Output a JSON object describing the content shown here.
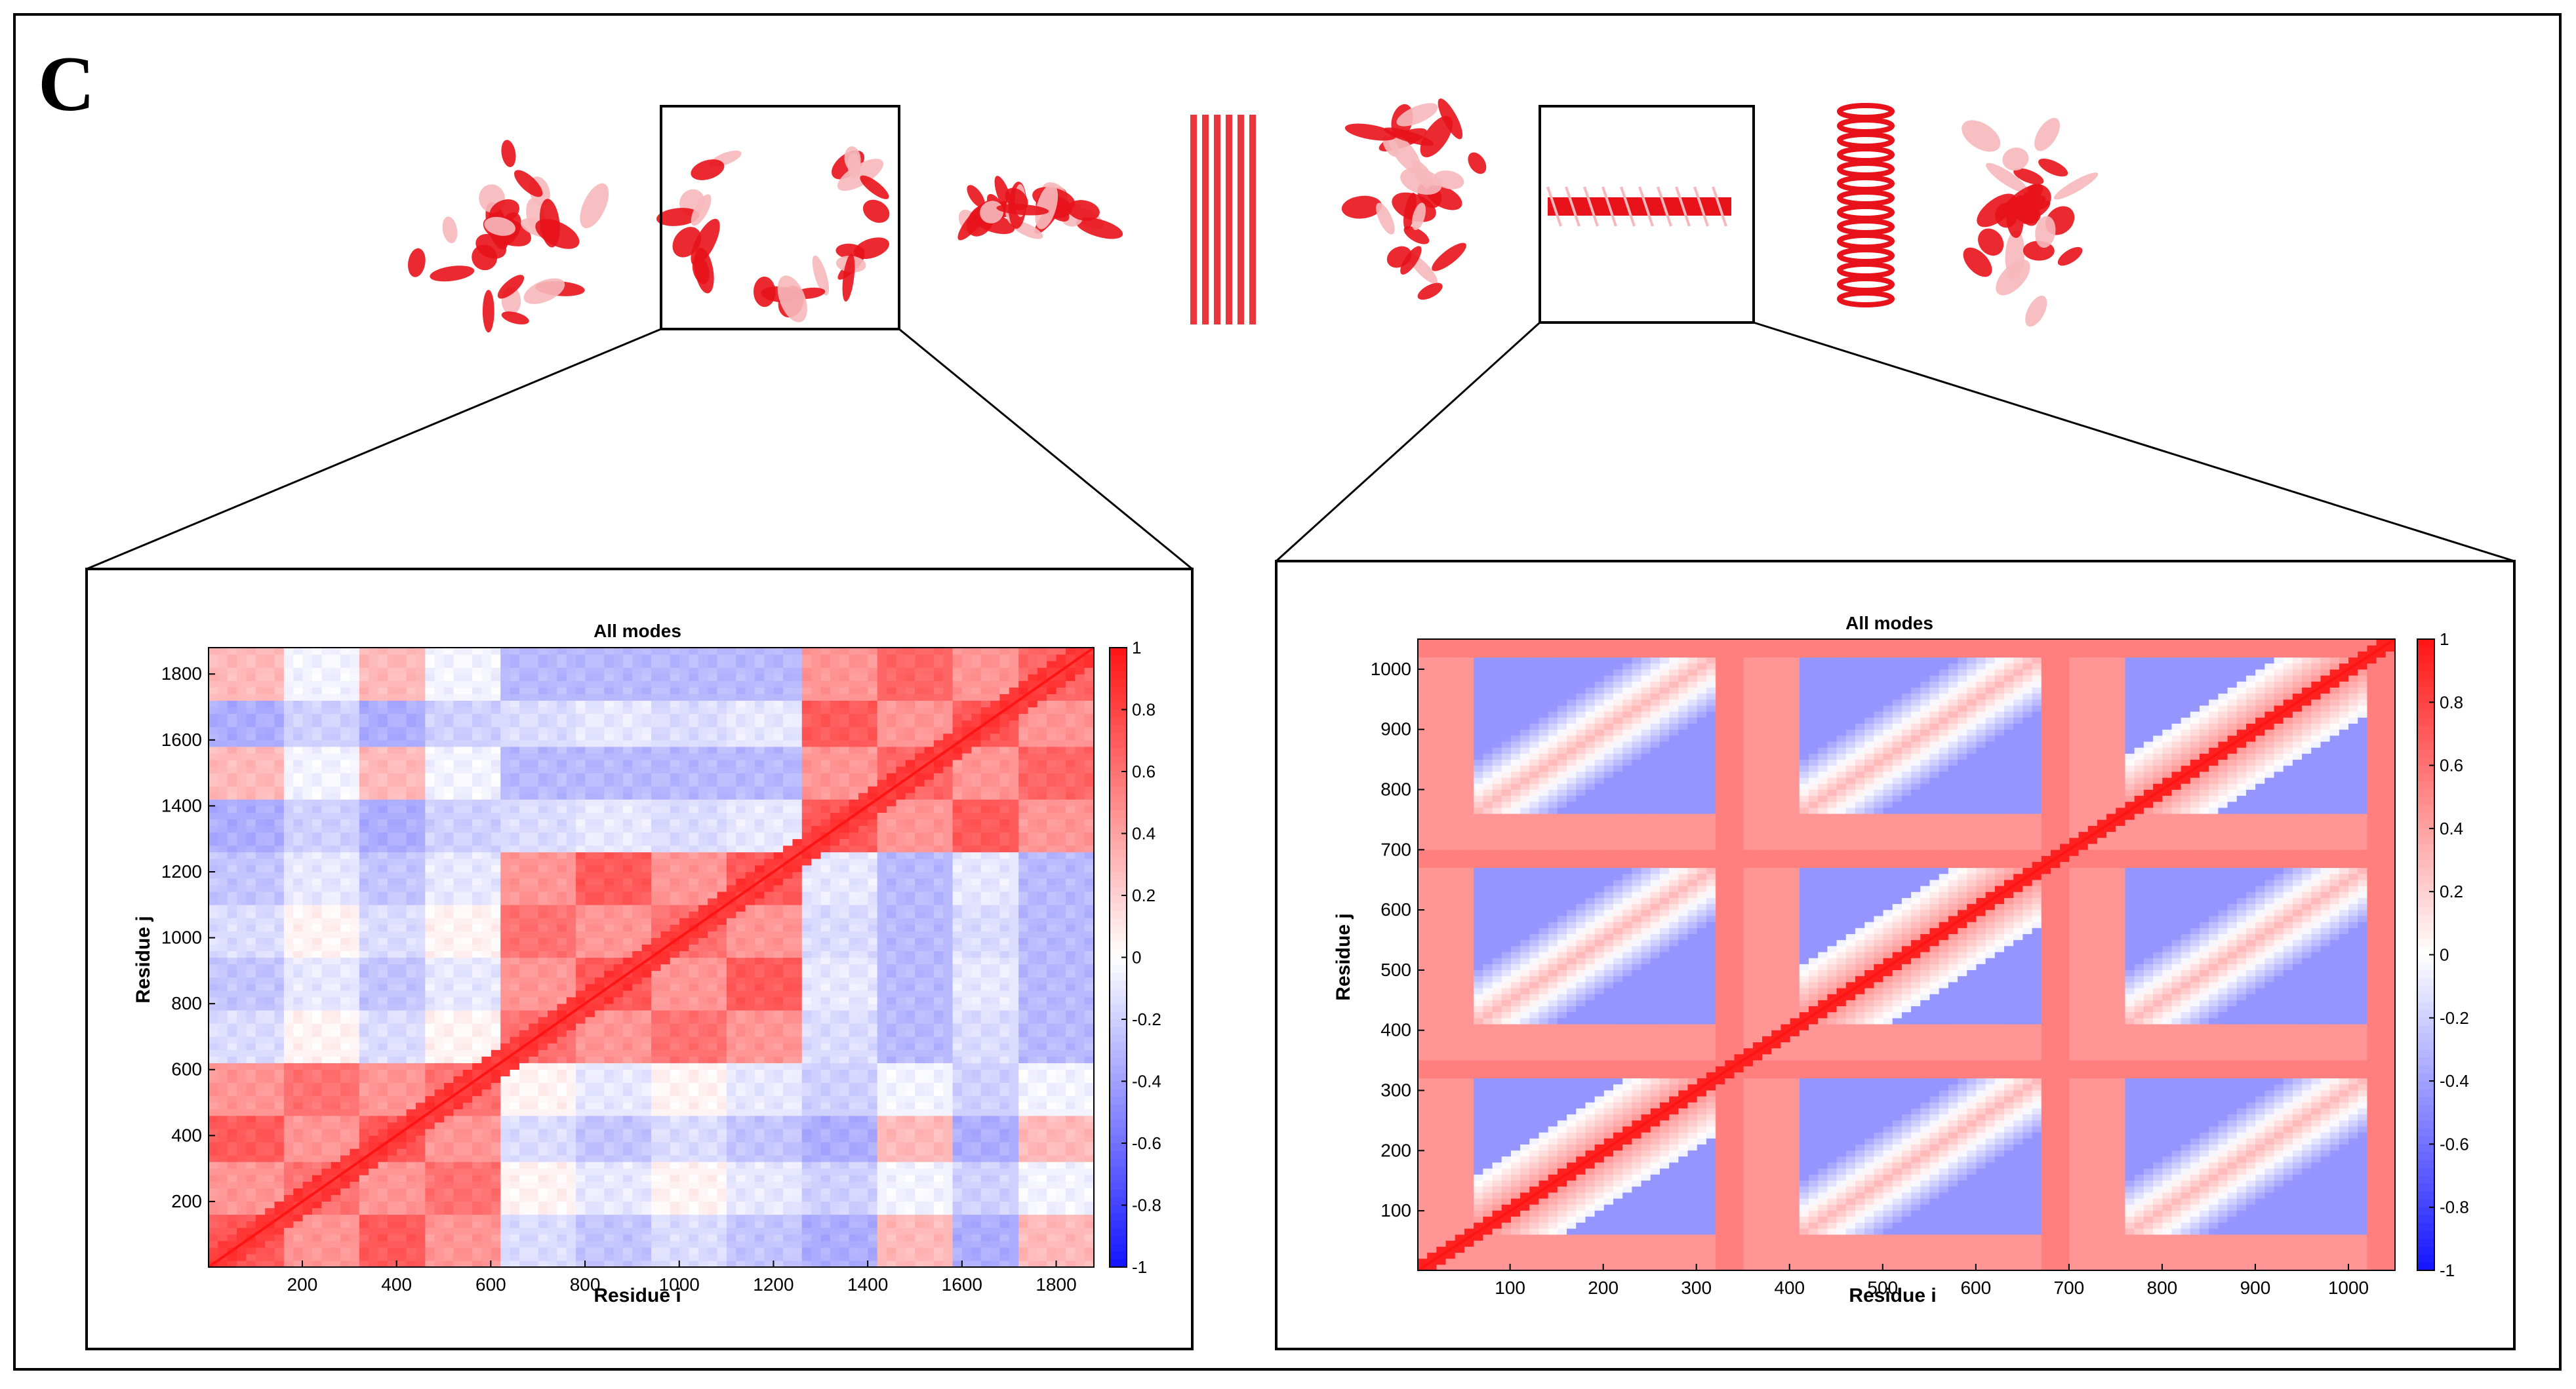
{
  "figure": {
    "panel_label": "C"
  },
  "palette": {
    "red": "#e8121b",
    "pink": "#f6b8bb",
    "blue": "#0000ff",
    "white": "#ffffff",
    "frame": "#000000"
  },
  "structures": [
    {
      "name": "structure-1",
      "color": "#e8121b"
    },
    {
      "name": "structure-2-boxed",
      "color": "#e8121b"
    },
    {
      "name": "structure-3",
      "color": "#e8121b"
    },
    {
      "name": "structure-4",
      "color": "#e8121b"
    },
    {
      "name": "structure-5",
      "color": "#e8121b"
    },
    {
      "name": "structure-6-boxed",
      "color": "#e8121b"
    },
    {
      "name": "structure-7",
      "color": "#e8121b"
    },
    {
      "name": "structure-8",
      "color": "#e8121b"
    }
  ],
  "chart_data": [
    {
      "type": "heatmap",
      "title": "All modes",
      "xlabel": "Residue i",
      "ylabel": "Residue j",
      "xlim": [
        1,
        1880
      ],
      "ylim": [
        1,
        1880
      ],
      "xticks": [
        200,
        400,
        600,
        800,
        1000,
        1200,
        1400,
        1600,
        1800
      ],
      "yticks": [
        200,
        400,
        600,
        800,
        1000,
        1200,
        1400,
        1600,
        1800
      ],
      "colorbar": {
        "range": [
          -1,
          1
        ],
        "ticks": [
          "1",
          "0.8",
          "0.6",
          "0.4",
          "0.2",
          "0",
          "-0.2",
          "-0.4",
          "-0.6",
          "-0.8",
          "-1"
        ]
      },
      "domains": [
        {
          "start": 1,
          "end": 160,
          "group": "A"
        },
        {
          "start": 160,
          "end": 330,
          "group": "B"
        },
        {
          "start": 330,
          "end": 470,
          "group": "A"
        },
        {
          "start": 470,
          "end": 630,
          "group": "B"
        },
        {
          "start": 630,
          "end": 780,
          "group": "C"
        },
        {
          "start": 780,
          "end": 940,
          "group": "D"
        },
        {
          "start": 940,
          "end": 1100,
          "group": "C"
        },
        {
          "start": 1100,
          "end": 1270,
          "group": "D"
        },
        {
          "start": 1270,
          "end": 1420,
          "group": "E"
        },
        {
          "start": 1420,
          "end": 1580,
          "group": "F"
        },
        {
          "start": 1580,
          "end": 1720,
          "group": "E"
        },
        {
          "start": 1720,
          "end": 1880,
          "group": "F"
        }
      ],
      "group_correlation": {
        "A": {
          "A": 0.7,
          "B": 0.45,
          "C": -0.15,
          "D": -0.25,
          "E": -0.35,
          "F": 0.3
        },
        "B": {
          "A": 0.45,
          "B": 0.6,
          "C": 0.05,
          "D": -0.1,
          "E": -0.2,
          "F": -0.05
        },
        "C": {
          "A": -0.15,
          "B": 0.05,
          "C": 0.6,
          "D": 0.45,
          "E": -0.15,
          "F": -0.3
        },
        "D": {
          "A": -0.25,
          "B": -0.1,
          "C": 0.45,
          "D": 0.7,
          "E": -0.1,
          "F": -0.3
        },
        "E": {
          "A": -0.35,
          "B": -0.2,
          "C": -0.15,
          "D": -0.1,
          "E": 0.7,
          "F": 0.45
        },
        "F": {
          "A": 0.3,
          "B": -0.05,
          "C": -0.3,
          "D": -0.3,
          "E": 0.45,
          "F": 0.65
        }
      }
    },
    {
      "type": "heatmap",
      "title": "All modes",
      "xlabel": "Residue i",
      "ylabel": "Residue j",
      "xlim": [
        1,
        1050
      ],
      "ylim": [
        1,
        1050
      ],
      "xticks": [
        100,
        200,
        300,
        400,
        500,
        600,
        700,
        800,
        900,
        1000
      ],
      "yticks": [
        100,
        200,
        300,
        400,
        500,
        600,
        700,
        800,
        900,
        1000
      ],
      "colorbar": {
        "range": [
          -1,
          1
        ],
        "ticks": [
          "1",
          "0.8",
          "0.6",
          "0.4",
          "0.2",
          "0",
          "-0.2",
          "-0.4",
          "-0.6",
          "-0.8",
          "-1"
        ]
      },
      "period": 350,
      "segments": [
        {
          "start": 0,
          "end": 65,
          "kind": "helix-end"
        },
        {
          "start": 65,
          "end": 320,
          "kind": "body"
        },
        {
          "start": 320,
          "end": 350,
          "kind": "linker"
        }
      ]
    }
  ]
}
